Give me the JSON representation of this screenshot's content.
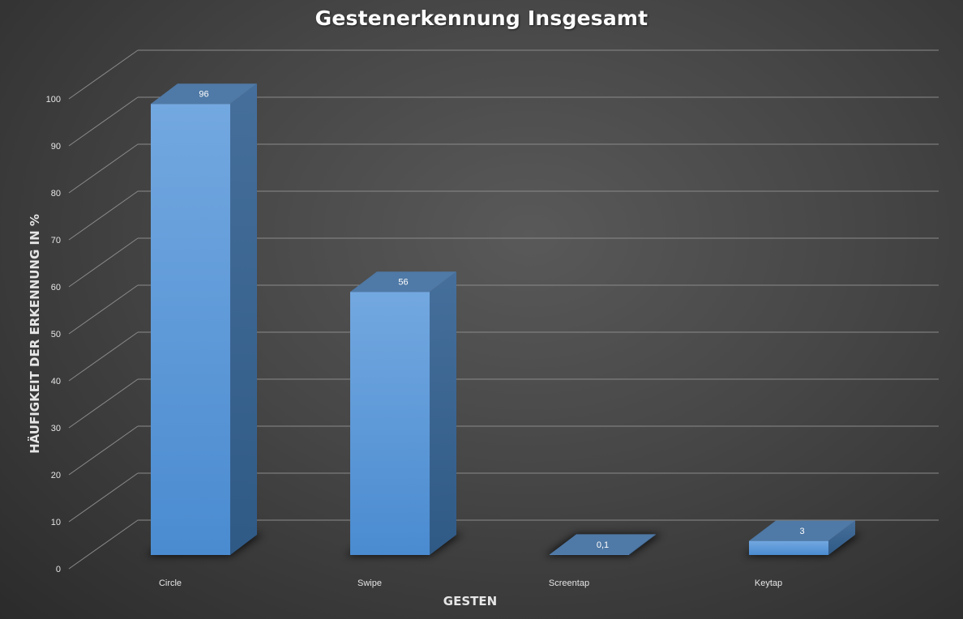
{
  "chart_data": {
    "type": "bar",
    "title": "Gestenerkennung Insgesamt",
    "xlabel": "GESTEN",
    "ylabel": "HÄUFIGKEIT DER ERKENNUNG IN %",
    "categories": [
      "Circle",
      "Swipe",
      "Screentap",
      "Keytap"
    ],
    "series": [
      {
        "values": [
          96,
          56,
          0.1,
          3
        ],
        "data_labels": [
          "96",
          "56",
          "0,1",
          "3"
        ]
      }
    ],
    "ylim": [
      0,
      100
    ],
    "yticks": [
      0,
      10,
      20,
      30,
      40,
      50,
      60,
      70,
      80,
      90,
      100
    ],
    "grid": true,
    "three_d": true,
    "colors": {
      "bar": "#5b9bd5",
      "gridline": "#8a8a8a",
      "text": "#e6e6e6"
    }
  }
}
